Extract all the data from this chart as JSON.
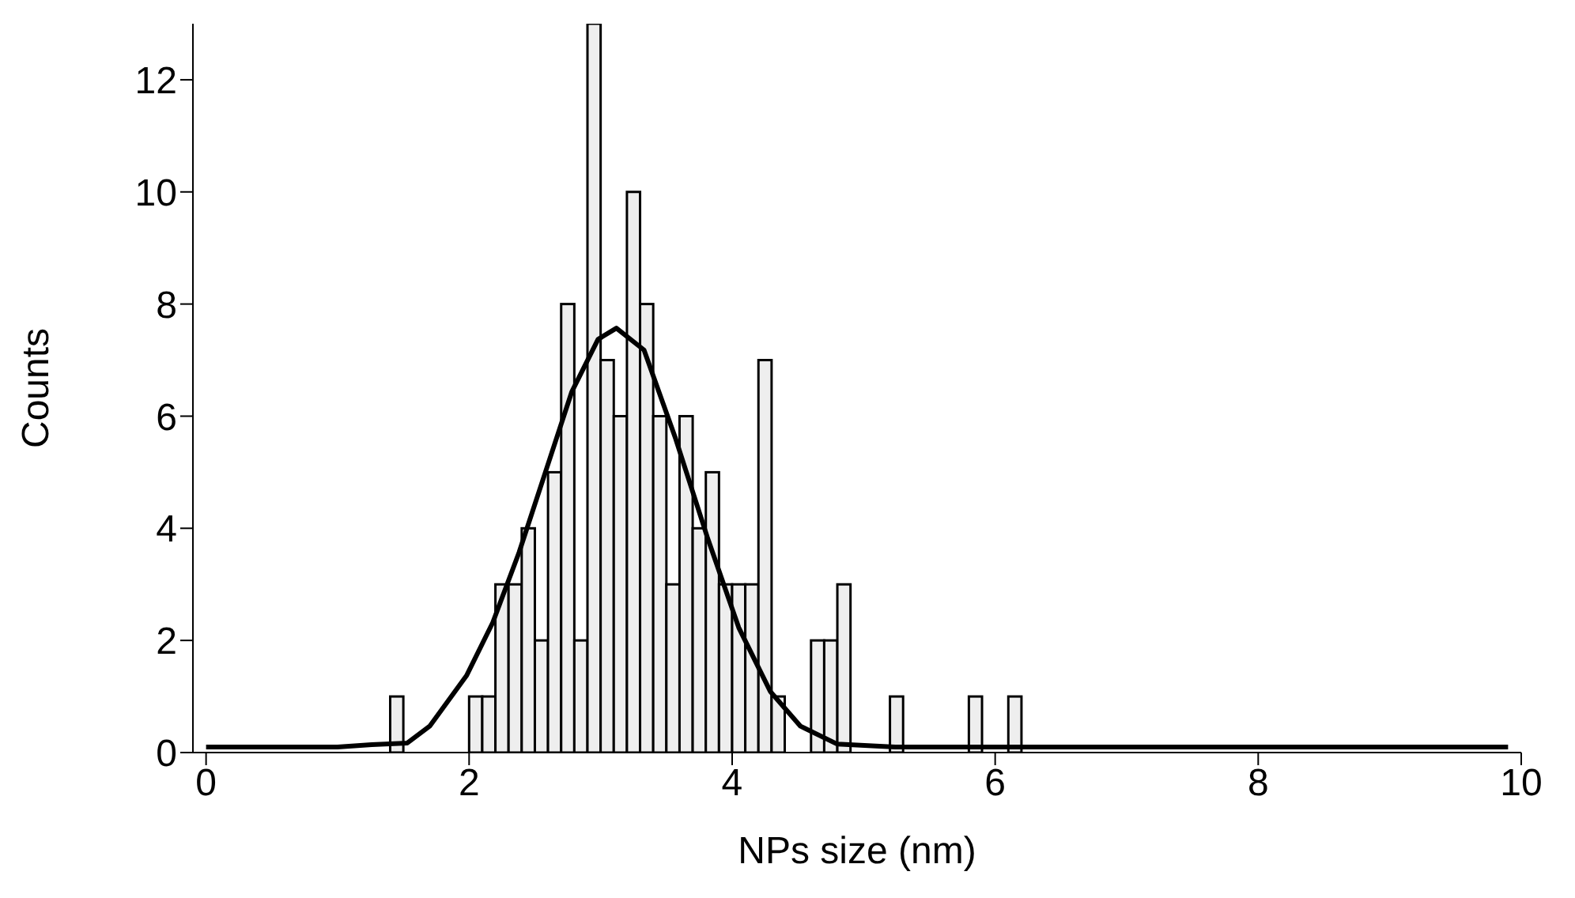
{
  "chart_data": {
    "type": "histogram",
    "xlabel": "NPs size (nm)",
    "ylabel": "Counts",
    "bins": [
      1.4,
      1.5,
      1.6,
      1.7,
      1.8,
      1.9,
      2.0,
      2.1,
      2.2,
      2.3,
      2.4,
      2.5,
      2.6,
      2.7,
      2.8,
      2.9,
      3.0,
      3.1,
      3.2,
      3.3,
      3.4,
      3.5,
      3.6,
      3.7,
      3.8,
      3.9,
      4.0,
      4.1,
      4.2,
      4.3,
      4.4,
      4.5,
      4.6,
      4.7,
      4.8,
      4.9,
      5.0,
      5.1,
      5.2,
      5.3,
      5.4,
      5.5,
      5.6,
      5.7,
      5.8,
      5.9,
      6.0,
      6.1,
      6.2
    ],
    "values": [
      1,
      0,
      0,
      0,
      0,
      0,
      1,
      1,
      3,
      3,
      4,
      2,
      5,
      8,
      2,
      13,
      7,
      6,
      10,
      8,
      6,
      3,
      6,
      4,
      5,
      3,
      3,
      3,
      7,
      1,
      0,
      0,
      2,
      2,
      3,
      0,
      0,
      0,
      1,
      0,
      0,
      0,
      0,
      0,
      1,
      0,
      0,
      1
    ],
    "color": "#eeeeee",
    "series": [
      {
        "type": "line",
        "color": "#000000",
        "x": [
          0,
          1.0,
          1.26,
          1.53,
          1.7,
          1.98,
          2.18,
          2.38,
          2.58,
          2.78,
          2.98,
          3.12,
          3.33,
          3.57,
          3.81,
          4.05,
          4.29,
          4.52,
          4.8,
          5.24,
          9.9
        ],
        "values": [
          0.1,
          0.1,
          0.14,
          0.17,
          0.47,
          1.37,
          2.32,
          3.57,
          5.0,
          6.43,
          7.37,
          7.57,
          7.18,
          5.6,
          3.85,
          2.23,
          1.09,
          0.47,
          0.15,
          0.1,
          0.1
        ]
      }
    ],
    "xlim": [
      -0.1,
      10
    ],
    "xticks": [
      0,
      2,
      4,
      6,
      8,
      10
    ],
    "ylim": [
      0,
      13
    ],
    "yticks": [
      0,
      2,
      4,
      6,
      8,
      10,
      12
    ],
    "grid": false,
    "legend": false,
    "marker": "none",
    "line_style": "solid"
  }
}
